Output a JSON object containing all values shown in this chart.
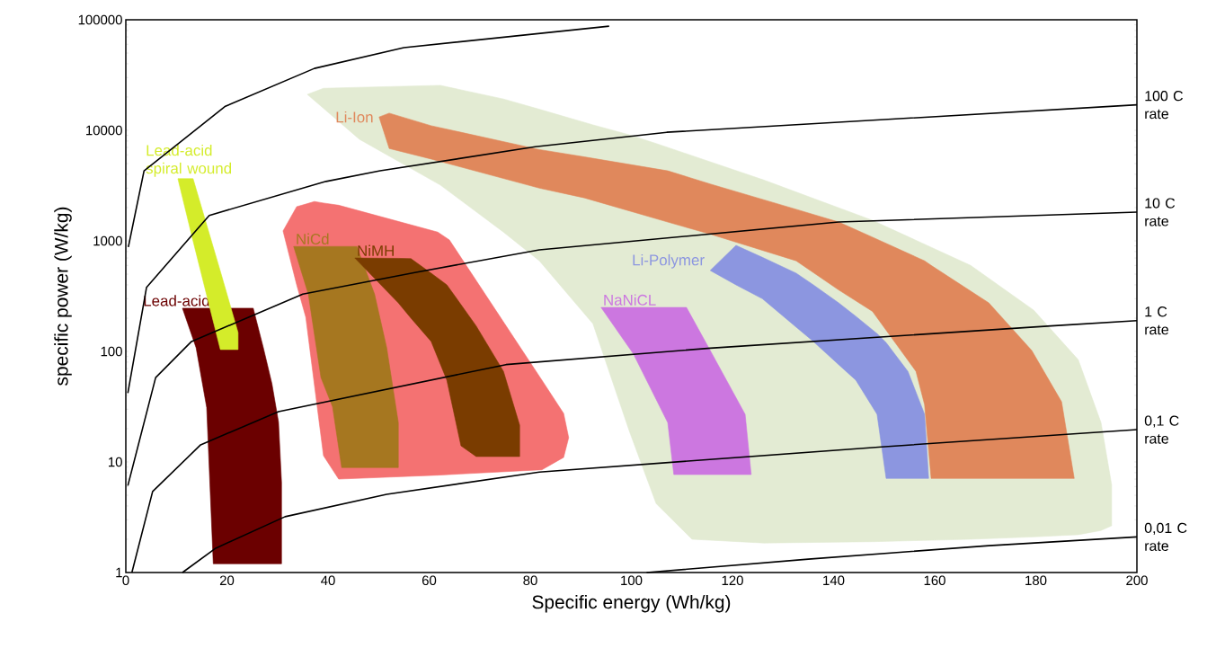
{
  "chart_data": {
    "type": "area",
    "xlabel": "Specific energy (Wh/kg)",
    "ylabel": "specific power (W/kg)",
    "log": "y",
    "xlim": [
      0,
      200
    ],
    "xticks": [
      0,
      20,
      40,
      60,
      80,
      100,
      120,
      140,
      160,
      180,
      200
    ],
    "ylim": [
      1,
      100000
    ],
    "yticks": [
      1,
      10,
      100,
      1000,
      10000,
      100000
    ],
    "series": [
      {
        "color": "#e3ebd3",
        "x": [
          35.9,
          39.1,
          46.2,
          62.2,
          74.7,
          81.8,
          92.4,
          96,
          99.6,
          104.9,
          112,
          126.2,
          147.6,
          167.1,
          179.6,
          188.4,
          192.9,
          195,
          195,
          192.9,
          188.4,
          179.6,
          167.1,
          147.6,
          126.2,
          112,
          104.9,
          99.6,
          96,
          92.4,
          81.8,
          74.7,
          62.2,
          46.2,
          39.1
        ],
        "values": [
          21100,
          24000,
          24500,
          25500,
          19200,
          15500,
          11200,
          10100,
          9100,
          7600,
          5900,
          3550,
          1540,
          600,
          236,
          84,
          22.7,
          6.2,
          2.65,
          2.4,
          2.2,
          2.1,
          2.0,
          1.9,
          1.85,
          2.0,
          4.2,
          19,
          58,
          178,
          660,
          1200,
          3200,
          8300,
          15800
        ]
      },
      {
        "color": "#f47272",
        "x": [
          31.1,
          33.8,
          35.6,
          37.3,
          39.1,
          42.1,
          61.7,
          64.0,
          82.3,
          86.6,
          87.6,
          86.6,
          82.3,
          64.0,
          61.7,
          42.1,
          39.1,
          37.3,
          35.6,
          33.8
        ],
        "values": [
          1230,
          2040,
          2150,
          2270,
          2200,
          2100,
          1200,
          1020,
          55,
          27.5,
          16.6,
          11,
          8.5,
          7.7,
          7.6,
          7.0,
          11.4,
          50,
          204,
          400
        ]
      },
      {
        "name": "Lead-acid",
        "color": "#6b0000",
        "x": [
          11.2,
          25.2,
          27.2,
          28.9,
          30.2,
          30.8,
          30.8,
          17.3,
          16.0,
          13.9
        ],
        "values": [
          246,
          246,
          108,
          51,
          23,
          6.5,
          1.2,
          1.2,
          31,
          108
        ]
      },
      {
        "name": "Lead-acid spiral wound",
        "color": "#d4ec2a",
        "x": [
          10.3,
          13.3,
          18.7,
          22.2,
          22.2,
          18.7,
          13.3
        ],
        "values": [
          3650,
          3650,
          530,
          148,
          104,
          104,
          1000
        ]
      },
      {
        "name": "NiCd",
        "color": "#a67720",
        "x": [
          33.2,
          45.7,
          49.2,
          51.6,
          53.9,
          53.9,
          42.7,
          40.9,
          38.6,
          36.1
        ],
        "values": [
          890,
          890,
          330,
          108,
          22.7,
          8.9,
          8.9,
          31.5,
          58,
          330
        ]
      },
      {
        "name": "NiMH",
        "color": "#7a3c00",
        "x": [
          45.3,
          53.9,
          56.4,
          60.4,
          63.5,
          66.3,
          69.3,
          74.7,
          77.9,
          77.9,
          69.3,
          66.3,
          63.5,
          60.4,
          56.4,
          53.9
        ],
        "values": [
          700,
          695,
          690,
          510,
          400,
          265,
          170,
          66,
          21.5,
          11.2,
          11.2,
          14,
          55,
          123,
          200,
          275
        ]
      },
      {
        "name": "NaNiCL",
        "color": "#cc77e0",
        "x": [
          94,
          110.9,
          115.6,
          122.5,
          123.7,
          108.4,
          107.2,
          100.4
        ],
        "values": [
          250,
          250,
          102,
          27,
          7.7,
          7.7,
          22.7,
          95
        ]
      },
      {
        "name": "Li-Polymer",
        "color": "#8c96e0",
        "x": [
          115.6,
          120.7,
          125.9,
          132.6,
          136,
          141,
          144.4,
          148.6,
          150.4,
          154.7,
          158,
          158.8,
          150.4,
          148.6,
          144.4,
          141,
          136,
          132.6,
          125.9,
          120.7
        ],
        "values": [
          540,
          910,
          710,
          510,
          400,
          275,
          208,
          145,
          120,
          66,
          27,
          7.1,
          7.1,
          27,
          55,
          76,
          123,
          166,
          300,
          400
        ]
      },
      {
        "name": "Li-Ion",
        "color": "#e0885c",
        "x": [
          50.1,
          52.1,
          60.4,
          81.8,
          90.7,
          107.2,
          115.6,
          132.6,
          141,
          147.7,
          156.3,
          158,
          159.3,
          170.7,
          179.2,
          185.1,
          187.6,
          159.3,
          158,
          156.3,
          147.7,
          141,
          132.6,
          115.6,
          107.2,
          90.7,
          81.8,
          60.4,
          52.1
        ],
        "values": [
          13200,
          14300,
          11000,
          6700,
          5750,
          4300,
          3270,
          1930,
          1480,
          1080,
          715,
          660,
          600,
          275,
          102,
          35,
          7.1,
          7.1,
          33,
          66,
          230,
          360,
          660,
          1150,
          1480,
          2450,
          3000,
          5500,
          6850
        ]
      },
      {
        "type": "line",
        "color": "#000000",
        "x": [
          0.5,
          3.6,
          19.7,
          37.3,
          55,
          95.6
        ],
        "values": [
          880,
          4300,
          16500,
          36300,
          56000,
          87500
        ]
      },
      {
        "type": "line",
        "name": "100 C rate",
        "color": "#000000",
        "x": [
          0.4,
          4.1,
          16.5,
          39.6,
          50.3,
          81,
          107,
          200
        ],
        "values": [
          42,
          380,
          1700,
          3450,
          4300,
          7100,
          9600,
          17000
        ]
      },
      {
        "type": "line",
        "name": "10 C rate",
        "color": "#000000",
        "x": [
          0.4,
          5.9,
          13,
          35,
          57.4,
          81.8,
          141,
          200
        ],
        "values": [
          6.1,
          58,
          123,
          330,
          520,
          830,
          1480,
          1820
        ]
      },
      {
        "type": "line",
        "name": "1 C rate",
        "color": "#000000",
        "x": [
          1.2,
          5.3,
          14.8,
          30.2,
          75.2,
          115.6,
          183,
          200
        ],
        "values": [
          1.0,
          5.4,
          14.3,
          28.5,
          76,
          107,
          170,
          190
        ]
      },
      {
        "type": "line",
        "name": "0,1 C rate",
        "color": "#000000",
        "x": [
          11.2,
          17.8,
          31.5,
          51.6,
          81.8,
          149.5,
          200
        ],
        "values": [
          1.0,
          1.66,
          3.2,
          5.1,
          8.1,
          13.7,
          19.6
        ]
      },
      {
        "type": "line",
        "name": "0,01 C rate",
        "color": "#000000",
        "x": [
          103,
          135,
          170.7,
          200
        ],
        "values": [
          1.0,
          1.32,
          1.75,
          2.1
        ]
      }
    ]
  }
}
